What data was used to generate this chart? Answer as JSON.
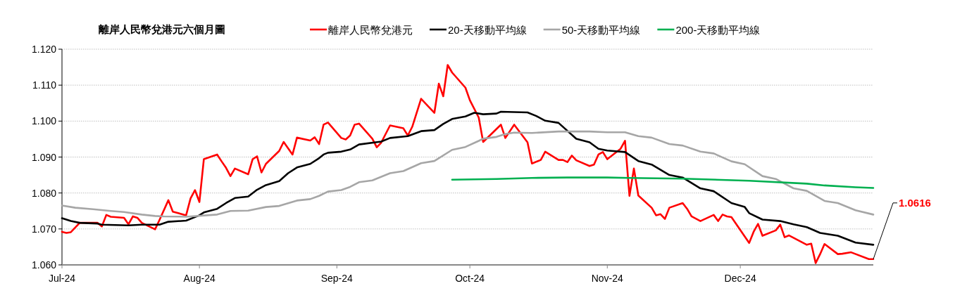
{
  "chart_data": {
    "type": "line",
    "title": "離岸人民幣兌港元六個月圖",
    "series": [
      {
        "name": "離岸人民幣兌港元",
        "color": "#ff0000",
        "x": [
          "2024-07-01",
          "2024-07-02",
          "2024-07-03",
          "2024-07-05",
          "2024-07-09",
          "2024-07-10",
          "2024-07-11",
          "2024-07-12",
          "2024-07-15",
          "2024-07-16",
          "2024-07-17",
          "2024-07-18",
          "2024-07-19",
          "2024-07-22",
          "2024-07-23",
          "2024-07-25",
          "2024-07-26",
          "2024-07-29",
          "2024-07-30",
          "2024-07-31",
          "2024-08-01",
          "2024-08-02",
          "2024-08-05",
          "2024-08-06",
          "2024-08-07",
          "2024-08-08",
          "2024-08-09",
          "2024-08-12",
          "2024-08-13",
          "2024-08-14",
          "2024-08-15",
          "2024-08-16",
          "2024-08-19",
          "2024-08-20",
          "2024-08-22",
          "2024-08-23",
          "2024-08-26",
          "2024-08-27",
          "2024-08-28",
          "2024-08-29",
          "2024-08-30",
          "2024-09-02",
          "2024-09-03",
          "2024-09-04",
          "2024-09-05",
          "2024-09-06",
          "2024-09-09",
          "2024-09-10",
          "2024-09-11",
          "2024-09-13",
          "2024-09-16",
          "2024-09-17",
          "2024-09-18",
          "2024-09-20",
          "2024-09-23",
          "2024-09-24",
          "2024-09-25",
          "2024-09-26",
          "2024-09-27",
          "2024-09-30",
          "2024-10-01",
          "2024-10-03",
          "2024-10-04",
          "2024-10-08",
          "2024-10-09",
          "2024-10-11",
          "2024-10-14",
          "2024-10-15",
          "2024-10-17",
          "2024-10-18",
          "2024-10-21",
          "2024-10-22",
          "2024-10-23",
          "2024-10-24",
          "2024-10-25",
          "2024-10-28",
          "2024-10-29",
          "2024-10-30",
          "2024-10-31",
          "2024-11-01",
          "2024-11-04",
          "2024-11-05",
          "2024-11-06",
          "2024-11-07",
          "2024-11-08",
          "2024-11-11",
          "2024-11-12",
          "2024-11-13",
          "2024-11-14",
          "2024-11-15",
          "2024-11-18",
          "2024-11-19",
          "2024-11-20",
          "2024-11-22",
          "2024-11-25",
          "2024-11-26",
          "2024-11-27",
          "2024-11-28",
          "2024-11-29",
          "2024-12-03",
          "2024-12-04",
          "2024-12-05",
          "2024-12-06",
          "2024-12-09",
          "2024-12-10",
          "2024-12-11",
          "2024-12-12",
          "2024-12-16",
          "2024-12-17",
          "2024-12-18",
          "2024-12-19",
          "2024-12-20",
          "2024-12-23",
          "2024-12-24",
          "2024-12-26",
          "2024-12-30",
          "2024-12-31"
        ],
        "values": [
          1.0692,
          1.0689,
          1.0691,
          1.0717,
          1.0717,
          1.0707,
          1.0739,
          1.0734,
          1.0731,
          1.0713,
          1.0735,
          1.0731,
          1.0717,
          1.0699,
          1.0725,
          1.078,
          1.0748,
          1.0738,
          1.0785,
          1.0808,
          1.0775,
          1.0894,
          1.0907,
          1.0888,
          1.087,
          1.0847,
          1.0868,
          1.0852,
          1.0894,
          1.0902,
          1.0857,
          1.0881,
          1.0917,
          1.0942,
          1.0907,
          1.0954,
          1.0946,
          1.0955,
          1.0936,
          1.099,
          1.0996,
          1.0953,
          1.0949,
          1.096,
          1.099,
          1.0993,
          1.0951,
          1.0927,
          1.094,
          1.0988,
          1.098,
          1.096,
          1.0984,
          1.1062,
          1.1023,
          1.1104,
          1.1069,
          1.1156,
          1.1135,
          1.1093,
          1.1058,
          1.101,
          1.0942,
          1.099,
          1.0953,
          1.099,
          1.0941,
          1.0882,
          1.0892,
          1.0915,
          1.0892,
          1.0892,
          1.0886,
          1.0904,
          1.0891,
          1.0875,
          1.0879,
          1.0907,
          1.0914,
          1.0894,
          1.0923,
          1.0945,
          1.0792,
          1.0868,
          1.0793,
          1.0759,
          1.0738,
          1.0741,
          1.0728,
          1.0759,
          1.0772,
          1.0756,
          1.0735,
          1.0722,
          1.0739,
          1.0722,
          1.074,
          1.0735,
          1.0733,
          1.0661,
          1.0692,
          1.0714,
          1.0681,
          1.0696,
          1.0712,
          1.0677,
          1.0682,
          1.0656,
          1.0659,
          1.0605,
          1.063,
          1.0658,
          1.063,
          1.0631,
          1.0635,
          1.0616,
          1.0616
        ]
      },
      {
        "name": "20-天移動平均線",
        "color": "#000000",
        "x": [
          "2024-07-01",
          "2024-07-03",
          "2024-07-05",
          "2024-07-09",
          "2024-07-10",
          "2024-07-16",
          "2024-07-19",
          "2024-07-23",
          "2024-07-25",
          "2024-07-29",
          "2024-08-01",
          "2024-08-02",
          "2024-08-05",
          "2024-08-07",
          "2024-08-09",
          "2024-08-12",
          "2024-08-14",
          "2024-08-16",
          "2024-08-19",
          "2024-08-21",
          "2024-08-23",
          "2024-08-26",
          "2024-08-28",
          "2024-08-29",
          "2024-08-30",
          "2024-09-02",
          "2024-09-04",
          "2024-09-06",
          "2024-09-11",
          "2024-09-13",
          "2024-09-17",
          "2024-09-20",
          "2024-09-23",
          "2024-09-25",
          "2024-09-27",
          "2024-09-30",
          "2024-10-02",
          "2024-10-04",
          "2024-10-07",
          "2024-10-08",
          "2024-10-14",
          "2024-10-16",
          "2024-10-18",
          "2024-10-21",
          "2024-10-25",
          "2024-10-28",
          "2024-10-30",
          "2024-11-01",
          "2024-11-05",
          "2024-11-08",
          "2024-11-11",
          "2024-11-15",
          "2024-11-18",
          "2024-11-22",
          "2024-11-25",
          "2024-11-29",
          "2024-12-02",
          "2024-12-03",
          "2024-12-06",
          "2024-12-10",
          "2024-12-13",
          "2024-12-16",
          "2024-12-19",
          "2024-12-23",
          "2024-12-27",
          "2024-12-31"
        ],
        "values": [
          1.073,
          1.0722,
          1.0717,
          1.0715,
          1.0712,
          1.071,
          1.0712,
          1.0712,
          1.072,
          1.0723,
          1.0738,
          1.0746,
          1.0756,
          1.0772,
          1.0786,
          1.079,
          1.0809,
          1.0822,
          1.0833,
          1.0855,
          1.0871,
          1.0881,
          1.0897,
          1.0907,
          1.0912,
          1.0915,
          1.0921,
          1.0935,
          1.0943,
          1.0953,
          1.0958,
          1.0972,
          1.0975,
          1.0992,
          1.1006,
          1.1013,
          1.1023,
          1.1019,
          1.1021,
          1.1026,
          1.1024,
          1.1014,
          1.1001,
          1.0995,
          1.0951,
          1.0941,
          1.0923,
          1.0918,
          1.0914,
          1.0889,
          1.0879,
          1.085,
          1.0843,
          1.0813,
          1.0805,
          1.0772,
          1.0761,
          1.0744,
          1.0726,
          1.0722,
          1.0713,
          1.0705,
          1.0689,
          1.0681,
          1.0662,
          1.0656
        ]
      },
      {
        "name": "50-天移動平均線",
        "color": "#a6a6a6",
        "x": [
          "2024-07-01",
          "2024-07-04",
          "2024-07-08",
          "2024-07-12",
          "2024-07-15",
          "2024-07-19",
          "2024-07-22",
          "2024-07-24",
          "2024-07-29",
          "2024-08-05",
          "2024-08-08",
          "2024-08-12",
          "2024-08-16",
          "2024-08-19",
          "2024-08-23",
          "2024-08-26",
          "2024-08-28",
          "2024-08-30",
          "2024-09-02",
          "2024-09-04",
          "2024-09-06",
          "2024-09-09",
          "2024-09-13",
          "2024-09-16",
          "2024-09-20",
          "2024-09-23",
          "2024-09-27",
          "2024-09-30",
          "2024-10-03",
          "2024-10-04",
          "2024-10-07",
          "2024-10-09",
          "2024-10-11",
          "2024-10-15",
          "2024-10-21",
          "2024-10-28",
          "2024-11-01",
          "2024-11-05",
          "2024-11-08",
          "2024-11-11",
          "2024-11-15",
          "2024-11-18",
          "2024-11-22",
          "2024-11-25",
          "2024-11-29",
          "2024-12-02",
          "2024-12-06",
          "2024-12-09",
          "2024-12-13",
          "2024-12-16",
          "2024-12-20",
          "2024-12-23",
          "2024-12-27",
          "2024-12-31"
        ],
        "values": [
          1.0765,
          1.0759,
          1.0755,
          1.075,
          1.0747,
          1.074,
          1.0736,
          1.0735,
          1.0734,
          1.074,
          1.075,
          1.0751,
          1.0761,
          1.0764,
          1.0779,
          1.0783,
          1.0792,
          1.0804,
          1.0808,
          1.0817,
          1.083,
          1.0835,
          1.0855,
          1.0861,
          1.0883,
          1.0889,
          1.092,
          1.0928,
          1.0945,
          1.0951,
          1.0956,
          1.0964,
          1.0968,
          1.0967,
          1.0971,
          1.0971,
          1.0969,
          1.0969,
          1.0958,
          1.0954,
          1.0936,
          1.0932,
          1.0915,
          1.091,
          1.0888,
          1.088,
          1.0847,
          1.0839,
          1.0813,
          1.0806,
          1.0778,
          1.0772,
          1.0752,
          1.074
        ]
      },
      {
        "name": "200-天移動平均線",
        "color": "#00b050",
        "x": [
          "2024-09-27",
          "2024-10-07",
          "2024-10-15",
          "2024-10-23",
          "2024-11-01",
          "2024-11-06",
          "2024-11-18",
          "2024-12-03",
          "2024-12-16",
          "2024-12-20",
          "2024-12-27",
          "2024-12-31"
        ],
        "values": [
          1.0837,
          1.0839,
          1.0842,
          1.0843,
          1.0843,
          1.0842,
          1.084,
          1.0834,
          1.0826,
          1.0821,
          1.0816,
          1.0814
        ]
      }
    ],
    "xlim": [
      "2024-07-01",
      "2024-12-31"
    ],
    "xticks": [
      {
        "value": "2024-07-01",
        "label": "Jul-24"
      },
      {
        "value": "2024-08-01",
        "label": "Aug-24"
      },
      {
        "value": "2024-09-01",
        "label": "Sep-24"
      },
      {
        "value": "2024-10-01",
        "label": "Oct-24"
      },
      {
        "value": "2024-11-01",
        "label": "Nov-24"
      },
      {
        "value": "2024-12-01",
        "label": "Dec-24"
      }
    ],
    "ylim": [
      1.06,
      1.12
    ],
    "yticks": [
      {
        "value": 1.06,
        "label": "1.060"
      },
      {
        "value": 1.07,
        "label": "1.070"
      },
      {
        "value": 1.08,
        "label": "1.080"
      },
      {
        "value": 1.09,
        "label": "1.090"
      },
      {
        "value": 1.1,
        "label": "1.100"
      },
      {
        "value": 1.11,
        "label": "1.110"
      },
      {
        "value": 1.12,
        "label": "1.120"
      }
    ],
    "grid": "y",
    "legend": "top",
    "annotations": [
      {
        "text": "1.0616",
        "x": "2024-12-31",
        "y": 1.0616
      }
    ]
  }
}
